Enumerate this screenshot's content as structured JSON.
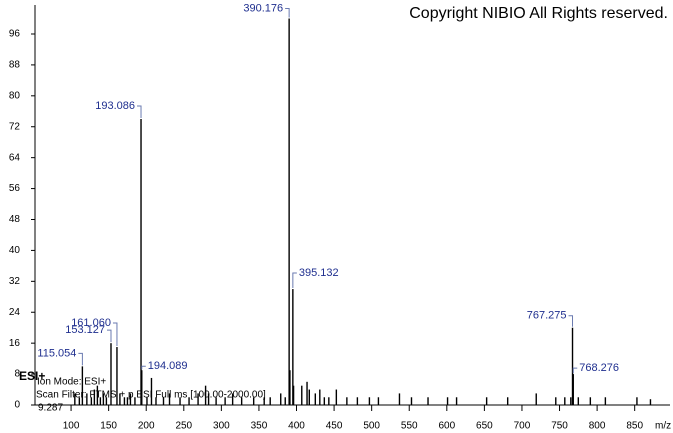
{
  "chart_data": {
    "type": "spectrum",
    "annotations": {
      "copyright": "Copyright NIBIO All Rights reserved.",
      "mode": "ESI+",
      "ion_mode": "Ion Mode: ESI+",
      "scan_filter": "Scan Filter: FTMS + p ESI Full ms [100.00-2000.00]",
      "retention_time": "9.287"
    },
    "xlabel": "m/z",
    "xlim": [
      52,
      897
    ],
    "ylim": [
      0,
      103.5
    ],
    "xticks": [
      100,
      150,
      200,
      250,
      300,
      350,
      400,
      450,
      500,
      550,
      600,
      650,
      700,
      750,
      800,
      850
    ],
    "yticks": [
      0,
      8,
      16,
      24,
      32,
      40,
      48,
      56,
      64,
      72,
      80,
      88,
      96
    ],
    "color": "#000000",
    "label_color": "#1f2f8f",
    "x": [
      105,
      111,
      115.054,
      121,
      127,
      131,
      135,
      139,
      143,
      147,
      153.127,
      161.06,
      165,
      171,
      175,
      179,
      185,
      193.086,
      194.089,
      201,
      207,
      213,
      223,
      231,
      245,
      257,
      269,
      279,
      283,
      293,
      305,
      315,
      327,
      343,
      357,
      365,
      379,
      385,
      390.176,
      391.2,
      395.132,
      396.1,
      407,
      414,
      417,
      425,
      431,
      437,
      443,
      453,
      467,
      481,
      497,
      509,
      537,
      553,
      575,
      601,
      613,
      653,
      681,
      719,
      745,
      757,
      765,
      767.275,
      768.276,
      775,
      791,
      811,
      853,
      871
    ],
    "values": [
      3,
      2,
      10,
      3,
      2,
      4,
      5,
      2,
      3,
      2,
      16,
      15,
      3,
      2,
      2,
      3,
      2,
      74,
      9,
      2,
      7,
      2,
      2,
      3,
      2,
      2,
      3,
      5,
      3,
      2,
      2,
      3,
      2,
      2,
      2,
      2,
      3,
      2,
      100,
      9,
      30,
      5,
      5,
      6,
      4,
      3,
      4,
      2,
      2,
      4,
      2,
      2,
      2,
      2,
      3,
      2,
      2,
      2,
      2,
      2,
      2,
      3,
      2,
      2,
      2,
      20,
      8,
      2,
      2,
      2,
      2,
      1.5
    ],
    "x_labels": [
      null,
      null,
      "115.054",
      null,
      null,
      null,
      null,
      null,
      null,
      null,
      "153.127",
      "161.060",
      null,
      null,
      null,
      null,
      null,
      "193.086",
      "194.089",
      null,
      null,
      null,
      null,
      null,
      null,
      null,
      null,
      null,
      null,
      null,
      null,
      null,
      null,
      null,
      null,
      null,
      null,
      null,
      "390.176",
      null,
      "395.132",
      null,
      null,
      null,
      null,
      null,
      null,
      null,
      null,
      null,
      null,
      null,
      null,
      null,
      null,
      null,
      null,
      null,
      null,
      null,
      null,
      null,
      null,
      null,
      null,
      "767.275",
      "768.276",
      null,
      null,
      null,
      null,
      null
    ]
  }
}
